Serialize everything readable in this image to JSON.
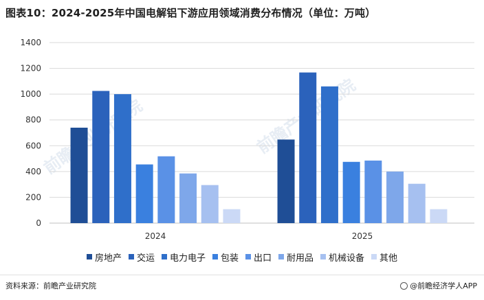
{
  "title": "图表10：2024-2025年中国电解铝下游应用领域消费分布情况（单位：万吨）",
  "source": "资料来源：前瞻产业研究院",
  "brand": "@前瞻经济学人APP",
  "watermark": "前瞻产业研究院",
  "chart_data": {
    "type": "bar",
    "categories": [
      "2024",
      "2025"
    ],
    "ylim": [
      0,
      1400
    ],
    "yticks": [
      0,
      200,
      400,
      600,
      800,
      1000,
      1200,
      1400
    ],
    "grid": true,
    "legend_position": "bottom",
    "series": [
      {
        "name": "房地产",
        "color": "#1f4e96",
        "values": [
          740,
          648
        ]
      },
      {
        "name": "交运",
        "color": "#2b62bb",
        "values": [
          1025,
          1168
        ]
      },
      {
        "name": "电力电子",
        "color": "#2f6fca",
        "values": [
          1000,
          1060
        ]
      },
      {
        "name": "包装",
        "color": "#3a80df",
        "values": [
          455,
          475
        ]
      },
      {
        "name": "出口",
        "color": "#5a91e6",
        "values": [
          518,
          485
        ]
      },
      {
        "name": "耐用品",
        "color": "#7ea7ea",
        "values": [
          385,
          400
        ]
      },
      {
        "name": "机械设备",
        "color": "#a6c0f0",
        "values": [
          295,
          305
        ]
      },
      {
        "name": "其他",
        "color": "#cbd9f6",
        "values": [
          108,
          108
        ]
      }
    ]
  }
}
